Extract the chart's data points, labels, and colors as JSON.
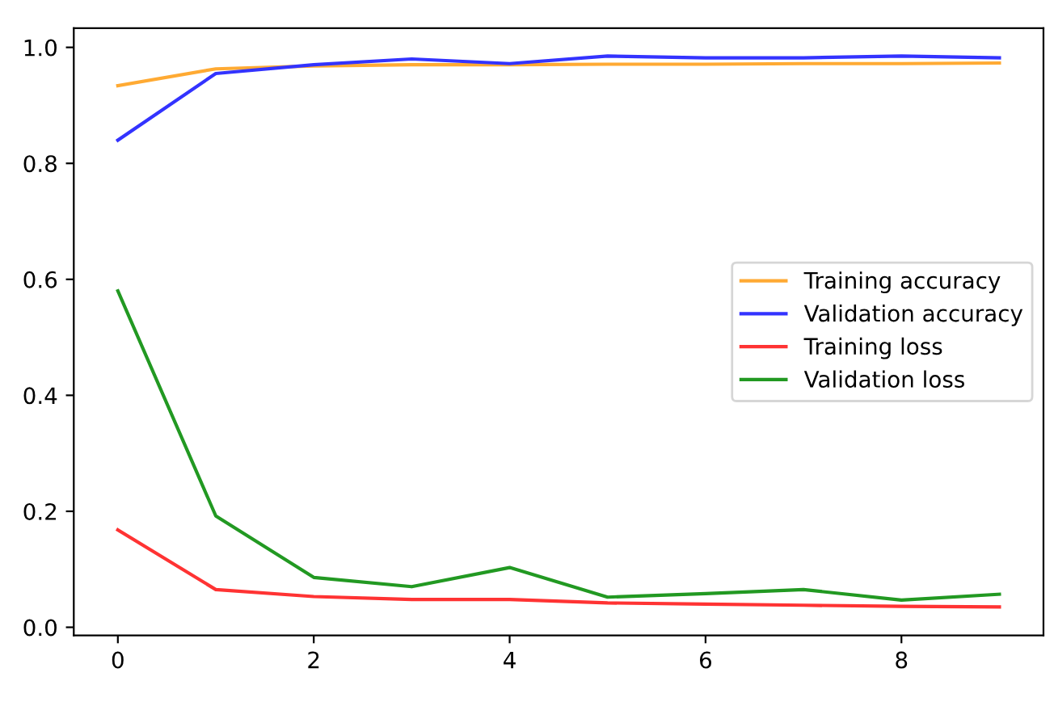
{
  "chart_data": {
    "type": "line",
    "x": [
      0,
      1,
      2,
      3,
      4,
      5,
      6,
      7,
      8,
      9
    ],
    "series": [
      {
        "name": "Training accuracy",
        "color": "#ffaa33",
        "values": [
          0.934,
          0.963,
          0.968,
          0.97,
          0.97,
          0.971,
          0.971,
          0.972,
          0.972,
          0.973
        ]
      },
      {
        "name": "Validation accuracy",
        "color": "#3333ff",
        "values": [
          0.84,
          0.955,
          0.97,
          0.98,
          0.972,
          0.985,
          0.982,
          0.982,
          0.985,
          0.982
        ]
      },
      {
        "name": "Training loss",
        "color": "#ff3333",
        "values": [
          0.168,
          0.065,
          0.053,
          0.048,
          0.048,
          0.042,
          0.04,
          0.038,
          0.036,
          0.035
        ]
      },
      {
        "name": "Validation loss",
        "color": "#229922",
        "values": [
          0.58,
          0.192,
          0.086,
          0.07,
          0.103,
          0.052,
          0.058,
          0.065,
          0.047,
          0.057
        ]
      }
    ],
    "xlim": [
      -0.45,
      9.45
    ],
    "ylim": [
      -0.014,
      1.033
    ],
    "xticks": [
      0,
      2,
      4,
      6,
      8
    ],
    "yticks": [
      {
        "value": 0,
        "label": "0.0"
      },
      0.2,
      0.4,
      0.6,
      0.8,
      {
        "value": 1,
        "label": "1.0"
      }
    ],
    "grid": false,
    "legend": "center right",
    "marker": "none",
    "line_style": "solid"
  }
}
